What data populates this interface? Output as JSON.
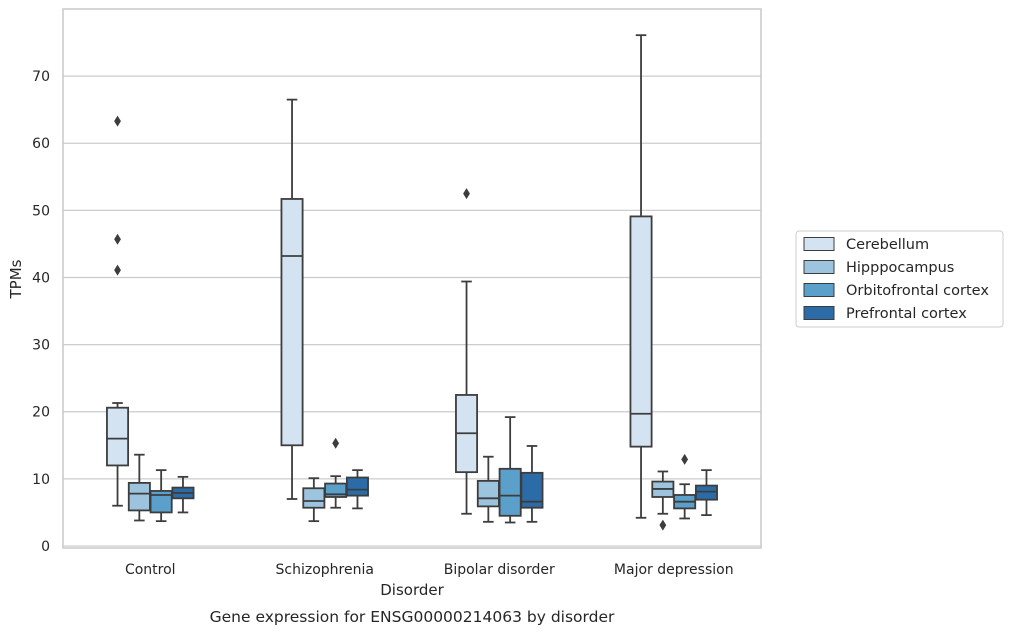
{
  "chart_data": {
    "type": "box",
    "caption": "Gene expression for ENSG00000214063 by disorder",
    "xlabel": "Disorder",
    "ylabel": "TPMs",
    "ylim": [
      -0.3,
      80
    ],
    "yticks": [
      0,
      10,
      20,
      30,
      40,
      50,
      60,
      70
    ],
    "grid": "horizontal",
    "legend_position": "right",
    "categories": [
      "Control",
      "Schizophrenia",
      "Bipolar disorder",
      "Major depression"
    ],
    "series": [
      {
        "name": "Cerebellum",
        "color": "#d3e3f1",
        "boxes": [
          {
            "whisker_low": 6.0,
            "q1": 12.0,
            "median": 16.0,
            "q3": 20.6,
            "whisker_high": 21.3,
            "outliers": [
              63.3,
              45.7,
              41.1
            ]
          },
          {
            "whisker_low": 7.0,
            "q1": 15.0,
            "median": 43.2,
            "q3": 51.7,
            "whisker_high": 66.5,
            "outliers": []
          },
          {
            "whisker_low": 4.8,
            "q1": 11.0,
            "median": 16.8,
            "q3": 22.5,
            "whisker_high": 39.4,
            "outliers": [
              52.5
            ]
          },
          {
            "whisker_low": 4.2,
            "q1": 14.8,
            "median": 19.7,
            "q3": 49.1,
            "whisker_high": 76.1,
            "outliers": []
          }
        ]
      },
      {
        "name": "Hipppocampus",
        "color": "#9dc4de",
        "boxes": [
          {
            "whisker_low": 3.8,
            "q1": 5.3,
            "median": 7.8,
            "q3": 9.4,
            "whisker_high": 13.6,
            "outliers": []
          },
          {
            "whisker_low": 3.7,
            "q1": 5.7,
            "median": 6.7,
            "q3": 8.6,
            "whisker_high": 10.1,
            "outliers": []
          },
          {
            "whisker_low": 3.6,
            "q1": 5.9,
            "median": 7.1,
            "q3": 9.7,
            "whisker_high": 13.3,
            "outliers": []
          },
          {
            "whisker_low": 4.8,
            "q1": 7.3,
            "median": 8.5,
            "q3": 9.6,
            "whisker_high": 11.1,
            "outliers": [
              3.1
            ]
          }
        ]
      },
      {
        "name": "Orbitofrontal cortex",
        "color": "#5b9fcb",
        "boxes": [
          {
            "whisker_low": 3.7,
            "q1": 5.0,
            "median": 7.6,
            "q3": 8.2,
            "whisker_high": 11.3,
            "outliers": []
          },
          {
            "whisker_low": 5.7,
            "q1": 7.3,
            "median": 7.7,
            "q3": 9.3,
            "whisker_high": 10.4,
            "outliers": [
              15.3
            ]
          },
          {
            "whisker_low": 3.5,
            "q1": 4.5,
            "median": 7.5,
            "q3": 11.5,
            "whisker_high": 19.2,
            "outliers": []
          },
          {
            "whisker_low": 4.1,
            "q1": 5.6,
            "median": 6.6,
            "q3": 7.6,
            "whisker_high": 9.2,
            "outliers": [
              12.9
            ]
          }
        ]
      },
      {
        "name": "Prefrontal cortex",
        "color": "#2b6ca8",
        "boxes": [
          {
            "whisker_low": 5.0,
            "q1": 7.1,
            "median": 7.9,
            "q3": 8.7,
            "whisker_high": 10.3,
            "outliers": []
          },
          {
            "whisker_low": 5.6,
            "q1": 7.5,
            "median": 8.4,
            "q3": 10.2,
            "whisker_high": 11.3,
            "outliers": []
          },
          {
            "whisker_low": 3.6,
            "q1": 5.7,
            "median": 6.6,
            "q3": 10.9,
            "whisker_high": 14.9,
            "outliers": []
          },
          {
            "whisker_low": 4.6,
            "q1": 6.9,
            "median": 8.1,
            "q3": 9.0,
            "whisker_high": 11.3,
            "outliers": []
          }
        ]
      }
    ]
  }
}
